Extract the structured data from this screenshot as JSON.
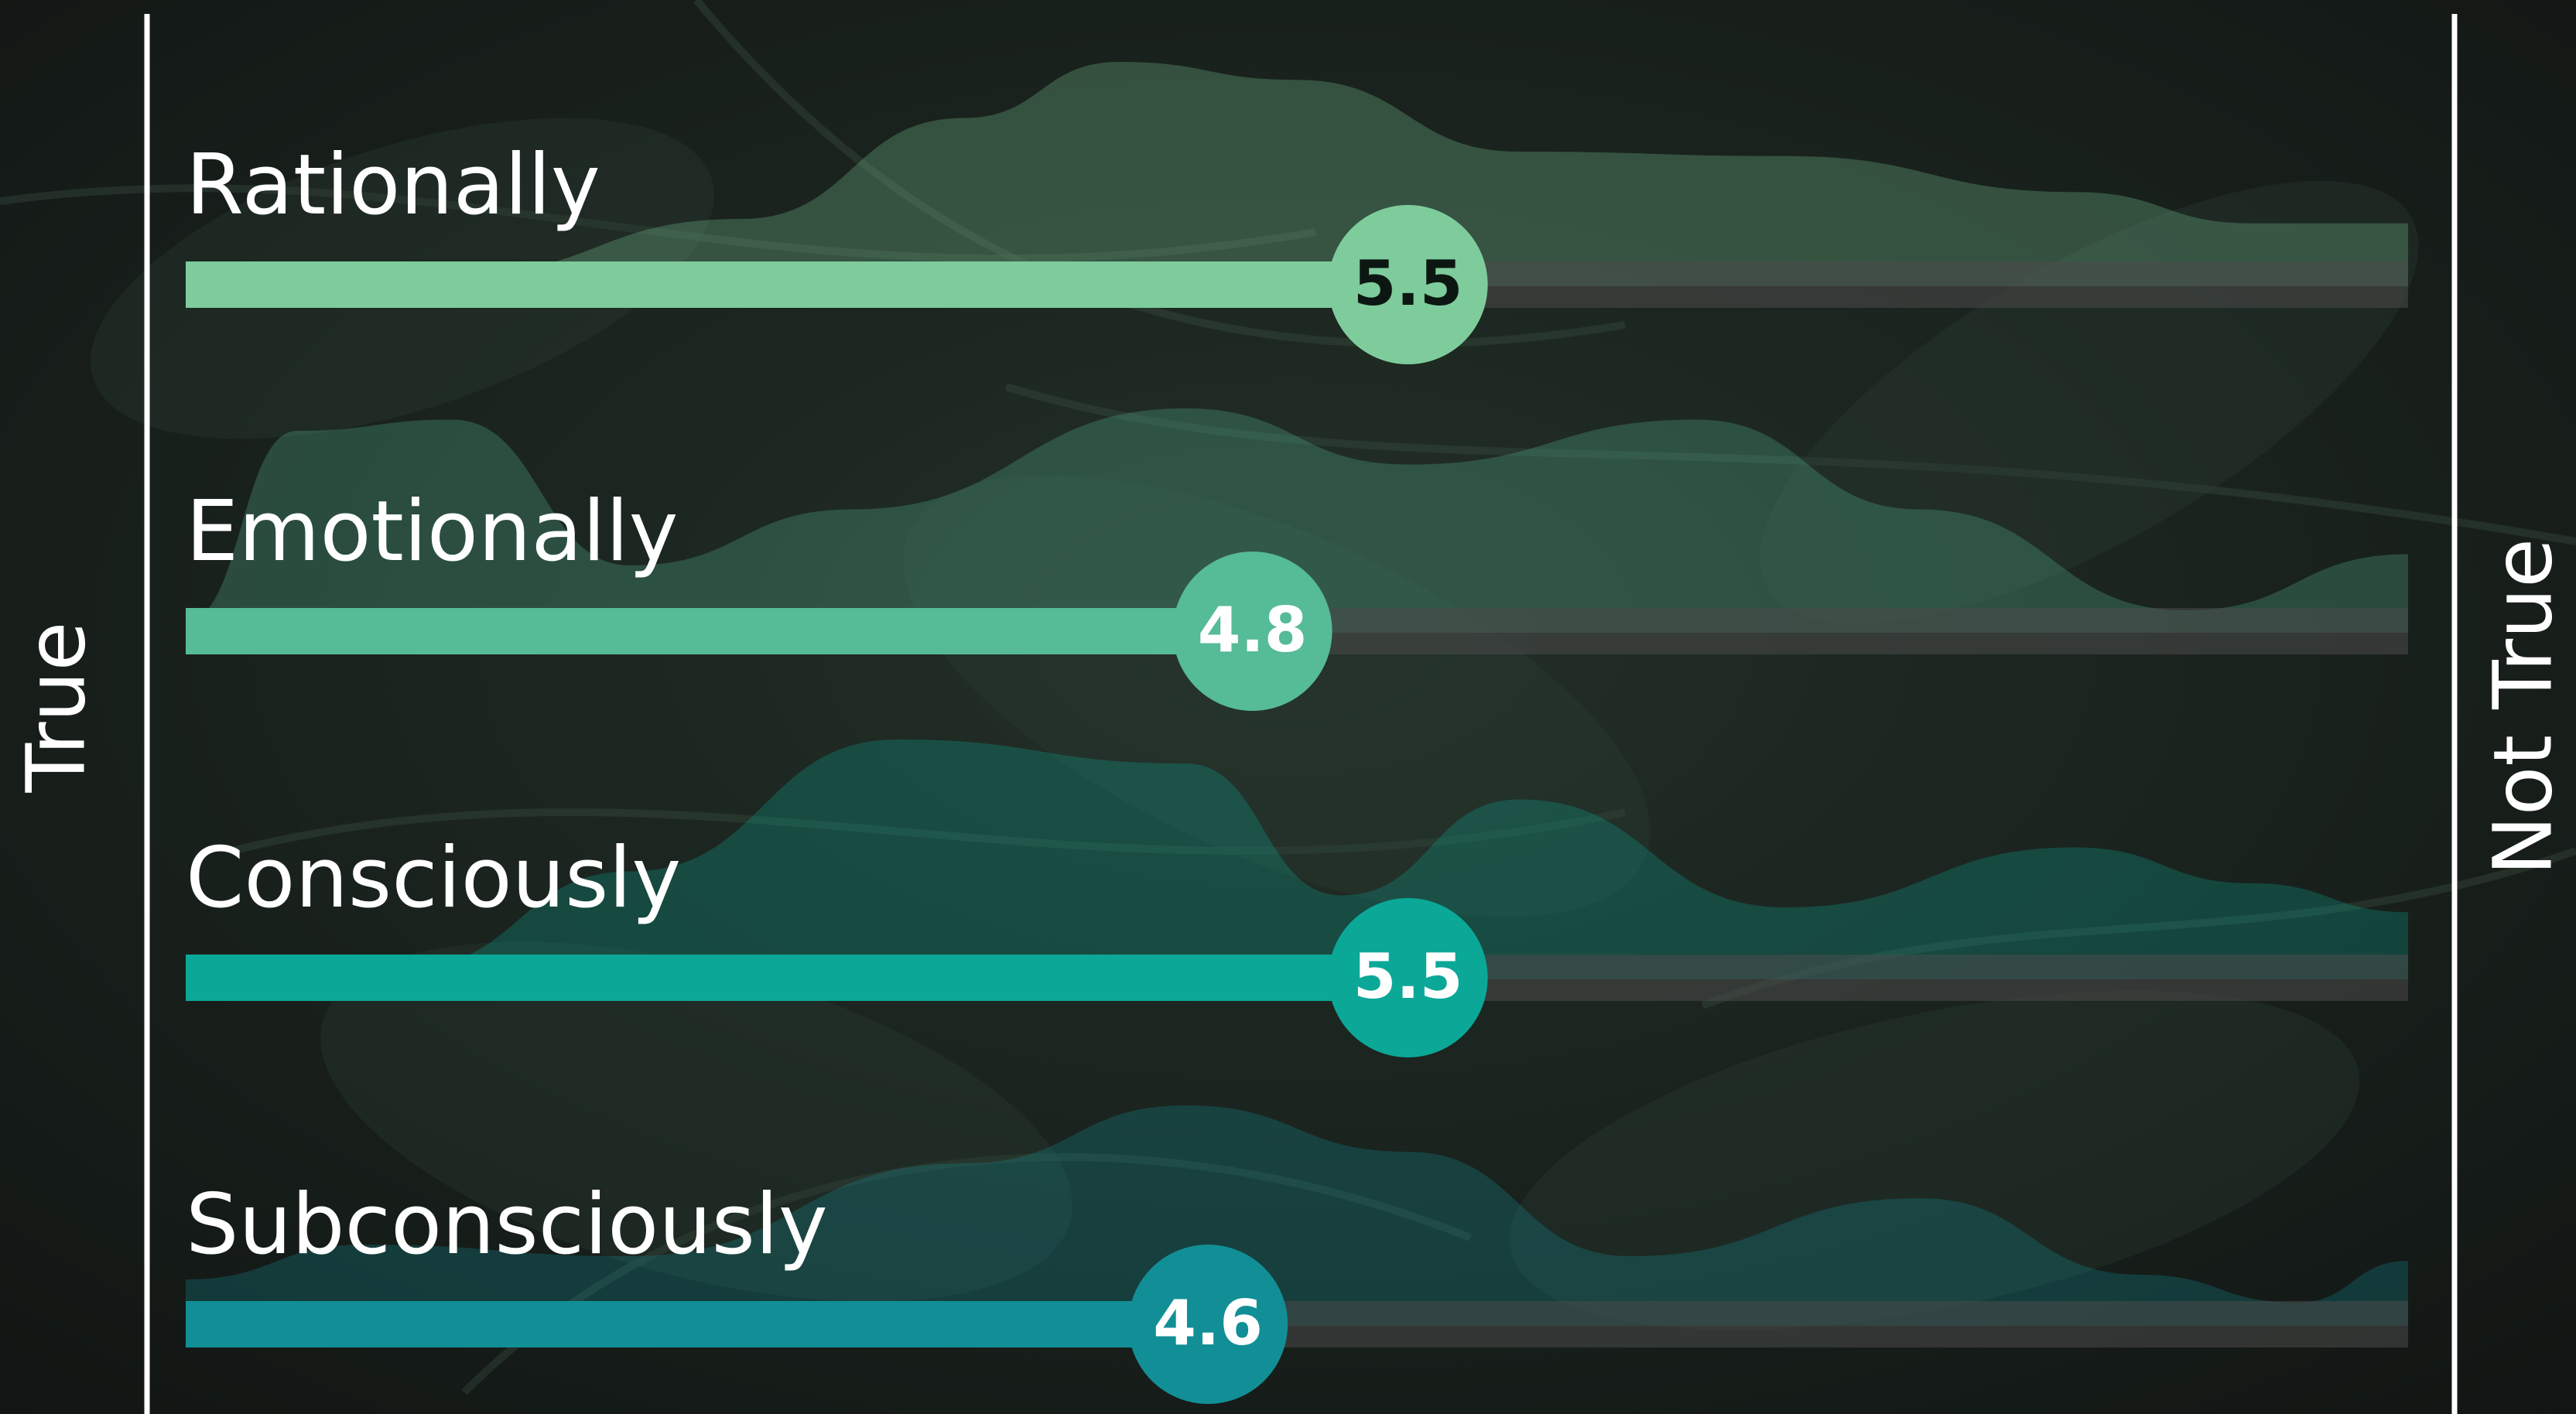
{
  "chart_data": {
    "type": "bar",
    "orientation": "horizontal",
    "categories": [
      "Rationally",
      "Emotionally",
      "Consciously",
      "Subconsciously"
    ],
    "values": [
      5.5,
      4.8,
      5.5,
      4.6
    ],
    "value_labels": [
      "5.5",
      "4.8",
      "5.5",
      "4.6"
    ],
    "xlim": [
      0,
      10
    ],
    "left_label": "True",
    "right_label": "Not True",
    "grid": false,
    "legend": "none",
    "colors": [
      "#7ecc9c",
      "#56bb97",
      "#0ba898",
      "#128f96"
    ],
    "value_text_colors": [
      "#0d1712",
      "#ffffff",
      "#ffffff",
      "#ffffff"
    ],
    "track_color": "#4a4a4a",
    "background_color": "#161b18"
  }
}
